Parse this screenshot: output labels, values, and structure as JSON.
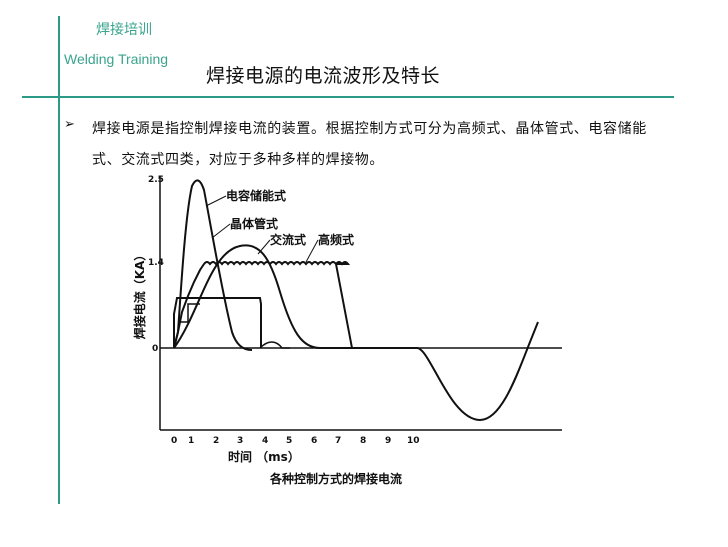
{
  "header": {
    "brand_cn": "焊接培训",
    "brand_en": "Welding Training",
    "title": "焊接电源的电流波形及特长"
  },
  "body": {
    "bullet_icon": "arrow-bullet-icon",
    "paragraph": "焊接电源是指控制焊接电流的装置。根据控制方式可分为高频式、晶体管式、电容储能式、交流式四类，对应于多种多样的焊接物。"
  },
  "figure": {
    "ylabel": "焊接电流（KA）",
    "xlabel": "时间 （ms）",
    "caption": "各种控制方式的焊接电流",
    "y_ticks": [
      "2.5",
      "1.4",
      "0"
    ],
    "x_ticks": [
      "0",
      "1",
      "2",
      "3",
      "4",
      "5",
      "6",
      "7",
      "8",
      "9",
      "10"
    ],
    "curve_labels": [
      "电容储能式",
      "晶体管式",
      "交流式",
      "高频式"
    ]
  },
  "colors": {
    "accent": "#2b9a86",
    "brand_text": "#3aa48d",
    "ink": "#111111"
  }
}
